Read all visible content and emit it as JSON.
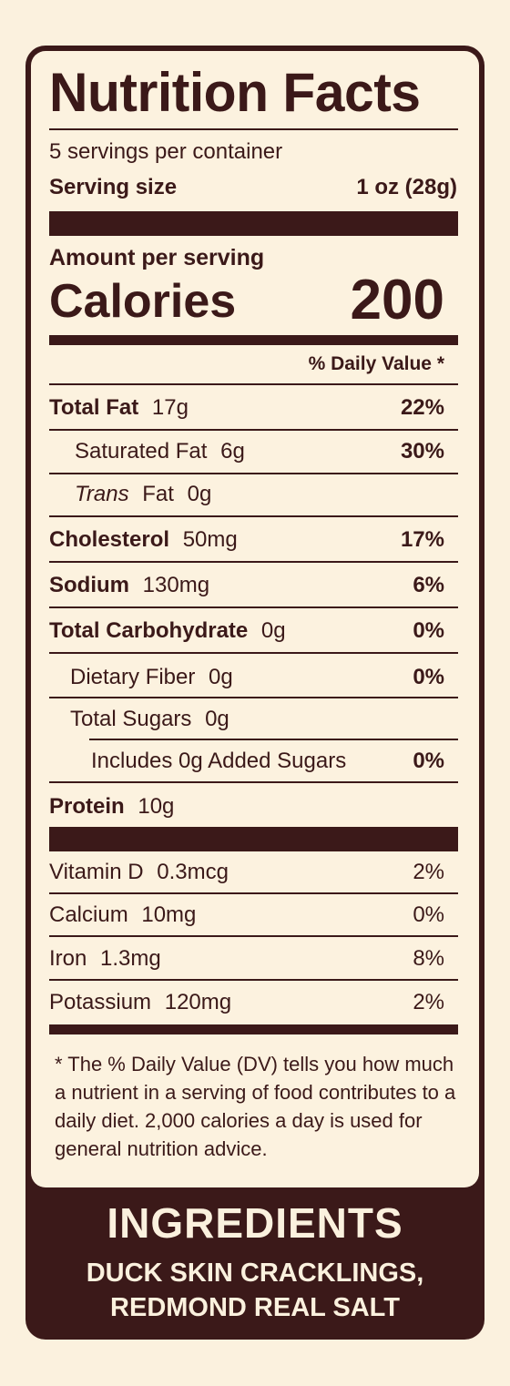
{
  "label": {
    "title": "Nutrition Facts",
    "servings_per_container": "5 servings per container",
    "serving_size_label": "Serving size",
    "serving_size_value": "1 oz (28g)",
    "amount_per_serving": "Amount per serving",
    "calories_label": "Calories",
    "calories_value": "200",
    "daily_value_header": "% Daily Value *"
  },
  "nutrients": [
    {
      "name": "Total Fat",
      "amount": "17g",
      "dv": "22%"
    },
    {
      "name": "Saturated Fat",
      "amount": "6g",
      "dv": "30%"
    },
    {
      "name_italic": "Trans",
      "name": "Fat",
      "amount": "0g"
    },
    {
      "name": "Cholesterol",
      "amount": "50mg",
      "dv": "17%"
    },
    {
      "name": "Sodium",
      "amount": "130mg",
      "dv": "6%"
    },
    {
      "name": "Total Carbohydrate",
      "amount": "0g",
      "dv": "0%"
    },
    {
      "name": "Dietary Fiber",
      "amount": "0g",
      "dv": "0%"
    },
    {
      "name": "Total Sugars",
      "amount": "0g"
    },
    {
      "name": "Includes 0g Added Sugars",
      "dv": "0%"
    },
    {
      "name": "Protein",
      "amount": "10g"
    }
  ],
  "vitamins": [
    {
      "name": "Vitamin D",
      "amount": "0.3mcg",
      "dv": "2%"
    },
    {
      "name": "Calcium",
      "amount": "10mg",
      "dv": "0%"
    },
    {
      "name": "Iron",
      "amount": "1.3mg",
      "dv": "8%"
    },
    {
      "name": "Potassium",
      "amount": "120mg",
      "dv": "2%"
    }
  ],
  "footnote": "* The % Daily Value (DV) tells you how much a nutrient in a serving of food contributes to a daily diet. 2,000 calories a day is used for general nutrition advice.",
  "ingredients": {
    "title": "INGREDIENTS",
    "line1": "DUCK SKIN CRACKLINGS,",
    "line2": "REDMOND REAL SALT"
  },
  "colors": {
    "background": "#fbf1de",
    "ink": "#3b1919"
  }
}
